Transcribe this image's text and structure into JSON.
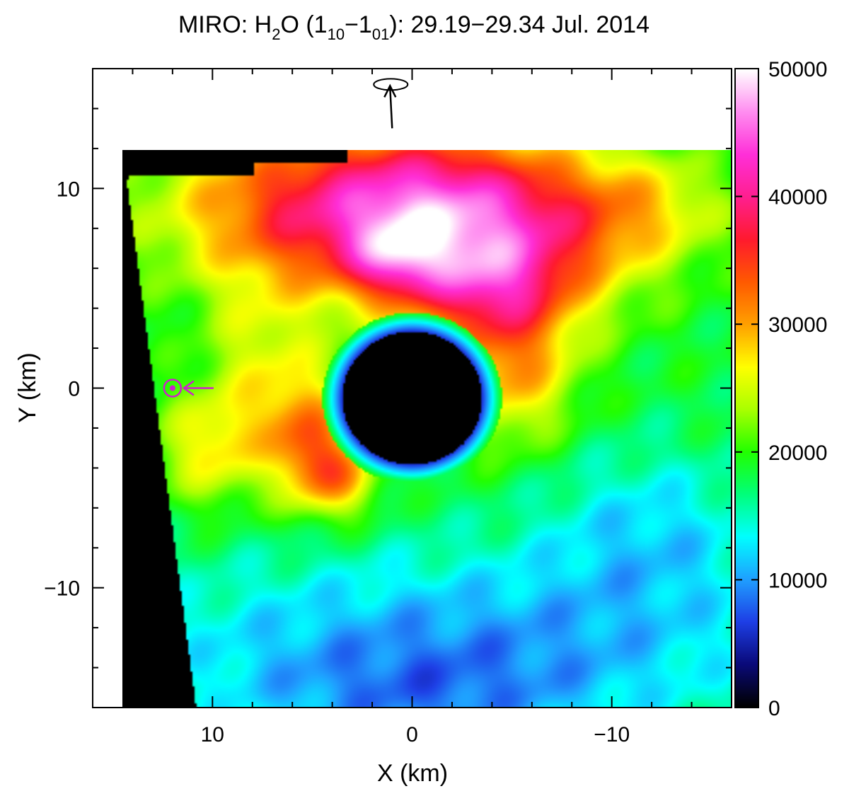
{
  "chart_data": {
    "type": "heatmap",
    "title": {
      "prefix": "MIRO: H",
      "h2o_sub": "2",
      "mid": "O (1",
      "sub1": "10",
      "dash": "−1",
      "sub2": "01",
      "suffix": "): 29.19−29.34 Jul. 2014"
    },
    "xlabel": "X (km)",
    "ylabel": "Y (km)",
    "xlim": [
      16,
      -16
    ],
    "ylim": [
      -16,
      16
    ],
    "x_ticks": [
      {
        "value": 10,
        "label": "10"
      },
      {
        "value": 0,
        "label": "0"
      },
      {
        "value": -10,
        "label": "−10"
      }
    ],
    "y_ticks": [
      {
        "value": 10,
        "label": "10"
      },
      {
        "value": 0,
        "label": "0"
      },
      {
        "value": -10,
        "label": "−10"
      }
    ],
    "colorbar": {
      "min": 0,
      "max": 50000,
      "ticks": [
        {
          "value": 0,
          "label": "0"
        },
        {
          "value": 10000,
          "label": "10000"
        },
        {
          "value": 20000,
          "label": "20000"
        },
        {
          "value": 30000,
          "label": "30000"
        },
        {
          "value": 40000,
          "label": "40000"
        },
        {
          "value": 50000,
          "label": "50000"
        }
      ],
      "colormap": [
        "#000000",
        "#0a0a7a",
        "#1e3fe6",
        "#1fa0ff",
        "#00ffff",
        "#00ff7a",
        "#22ff00",
        "#aaff00",
        "#ffff00",
        "#ffa000",
        "#ff5a00",
        "#ff1a2e",
        "#ff1f8f",
        "#ff2fd8",
        "#ff8cf0",
        "#ffffff"
      ]
    },
    "colors": {
      "mask": "#000000",
      "sun_marker": "#cc22cc",
      "rotation_marker": "#000000"
    },
    "markers": {
      "sun": {
        "x": 12,
        "y": 0
      },
      "rotation_axis": {
        "x": 1,
        "y": 14.5
      }
    },
    "field": {
      "background": 18500,
      "blobs": [
        {
          "x": 3,
          "y": 9,
          "sx": 6,
          "sy": 3,
          "v": 21000
        },
        {
          "x": -1,
          "y": 8,
          "sx": 3,
          "sy": 3,
          "v": 7000
        },
        {
          "x": -6,
          "y": 8,
          "sx": 4,
          "sy": 3,
          "v": 13000
        },
        {
          "x": 1,
          "y": 6.5,
          "sx": 1.6,
          "sy": 1.4,
          "v": 8000
        },
        {
          "x": -4,
          "y": 5,
          "sx": 2.8,
          "sy": 1.8,
          "v": 9000
        },
        {
          "x": -5,
          "y": 1,
          "sx": 2.2,
          "sy": 2.6,
          "v": 11000
        },
        {
          "x": 5.2,
          "y": -2.5,
          "sx": 1.4,
          "sy": 2.2,
          "v": 12000
        },
        {
          "x": 3.6,
          "y": -4.5,
          "sx": 1.4,
          "sy": 1.4,
          "v": 10000
        },
        {
          "x": 7.5,
          "y": 1,
          "sx": 2,
          "sy": 3,
          "v": 6000
        },
        {
          "x": 10,
          "y": -3,
          "sx": 2,
          "sy": 2,
          "v": 8000
        },
        {
          "x": -2,
          "y": -13,
          "sx": 12,
          "sy": 3.5,
          "v": -8500
        },
        {
          "x": -12,
          "y": -7,
          "sx": 4,
          "sy": 3,
          "v": -5500
        },
        {
          "x": 0,
          "y": -16,
          "sx": 6,
          "sy": 2,
          "v": -4000
        },
        {
          "x": -12,
          "y": 9,
          "sx": 3,
          "sy": 2,
          "v": 6000
        }
      ],
      "hole": {
        "x": 0,
        "y": -0.5,
        "r": 3.5,
        "ring": 1.0
      }
    }
  }
}
